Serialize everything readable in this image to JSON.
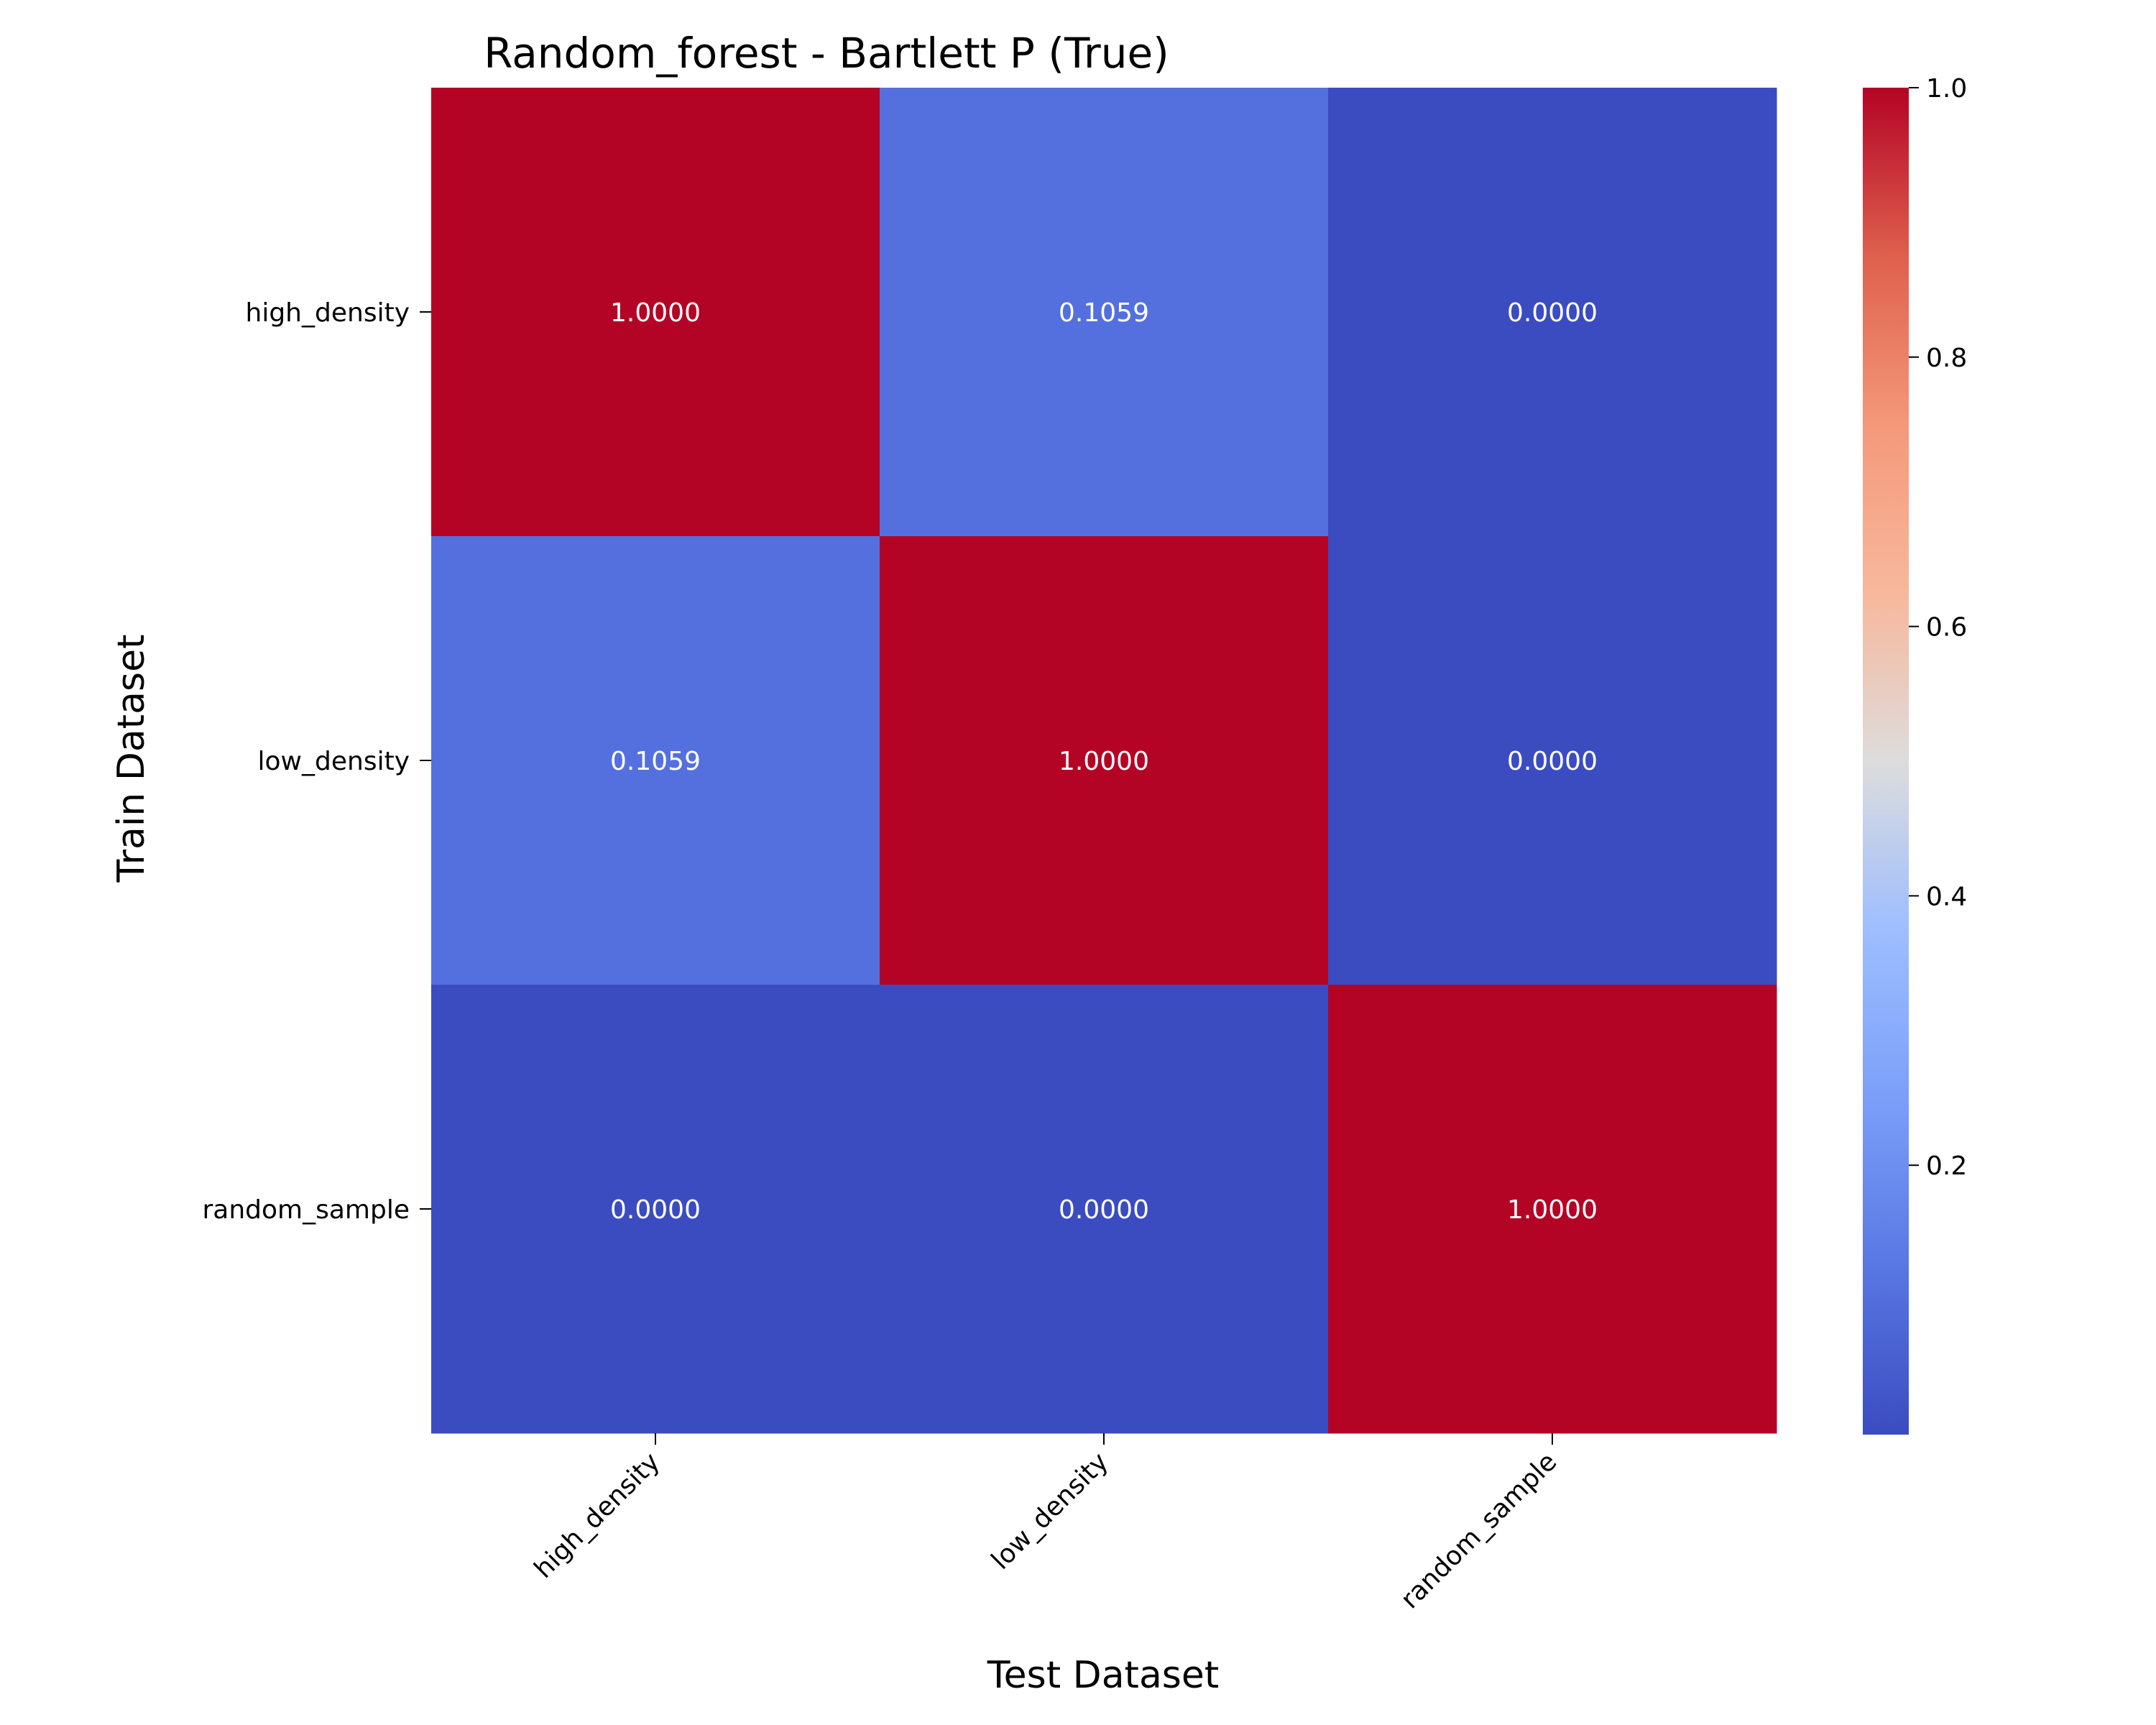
{
  "chart_data": {
    "type": "heatmap",
    "title": "Random_forest - Bartlett P (True)",
    "xlabel": "Test Dataset",
    "ylabel": "Train Dataset",
    "x_categories": [
      "high_density",
      "low_density",
      "random_sample"
    ],
    "y_categories": [
      "high_density",
      "low_density",
      "random_sample"
    ],
    "values": [
      [
        1.0,
        0.1059,
        0.0
      ],
      [
        0.1059,
        1.0,
        0.0
      ],
      [
        0.0,
        0.0,
        1.0
      ]
    ],
    "cell_labels": [
      [
        "1.0000",
        "0.1059",
        "0.0000"
      ],
      [
        "0.1059",
        "1.0000",
        "0.0000"
      ],
      [
        "0.0000",
        "0.0000",
        "1.0000"
      ]
    ],
    "colormap": "coolwarm",
    "colorbar": {
      "range": [
        0.0,
        1.0
      ],
      "ticks": [
        0.2,
        0.4,
        0.6,
        0.8,
        1.0
      ],
      "tick_labels": [
        "0.2",
        "0.4",
        "0.6",
        "0.8",
        "1.0"
      ]
    },
    "annotation_color": "#ffffff",
    "x_tick_rotation_deg": 45
  }
}
